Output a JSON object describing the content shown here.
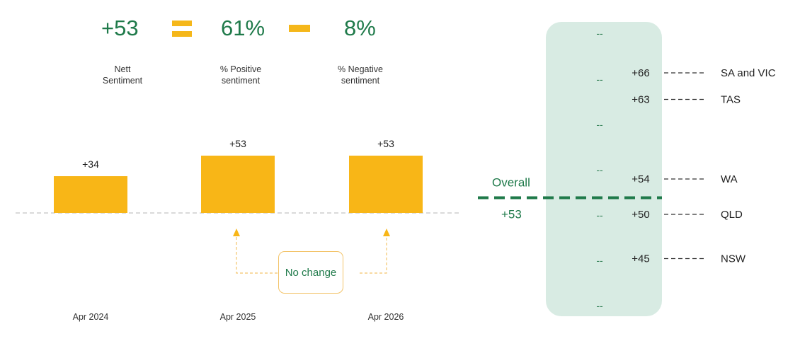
{
  "kpis": {
    "nett_value": "+53",
    "positive_value": "61%",
    "negative_value": "8%",
    "nett_label_1": "Nett",
    "nett_label_2": "Sentiment",
    "positive_label_1": "% Positive",
    "positive_label_2": "sentiment",
    "negative_label_1": "% Negative",
    "negative_label_2": "sentiment"
  },
  "colors": {
    "bar": "#f8b617",
    "accent_green": "#1f7a4a",
    "band": "#d8ebe3"
  },
  "callout": {
    "label": "No change"
  },
  "chart_data": [
    {
      "type": "bar",
      "categories": [
        "Apr 2024",
        "Apr 2025",
        "Apr 2026"
      ],
      "values": [
        34,
        53,
        53
      ],
      "labels": [
        "+34",
        "+53",
        "+53"
      ],
      "title": "",
      "xlabel": "",
      "ylabel": ""
    },
    {
      "type": "scatter",
      "overall": {
        "label": "Overall",
        "value": 53,
        "value_label": "+53"
      },
      "regions": [
        {
          "name": "SA and VIC",
          "value": 66,
          "label": "+66"
        },
        {
          "name": "TAS",
          "value": 63,
          "label": "+63"
        },
        {
          "name": "WA",
          "value": 54,
          "label": "+54"
        },
        {
          "name": "QLD",
          "value": 50,
          "label": "+50"
        },
        {
          "name": "NSW",
          "value": 45,
          "label": "+45"
        }
      ],
      "band_marks": [
        "--",
        "--",
        "--",
        "--",
        "--",
        "--",
        "--"
      ]
    }
  ]
}
